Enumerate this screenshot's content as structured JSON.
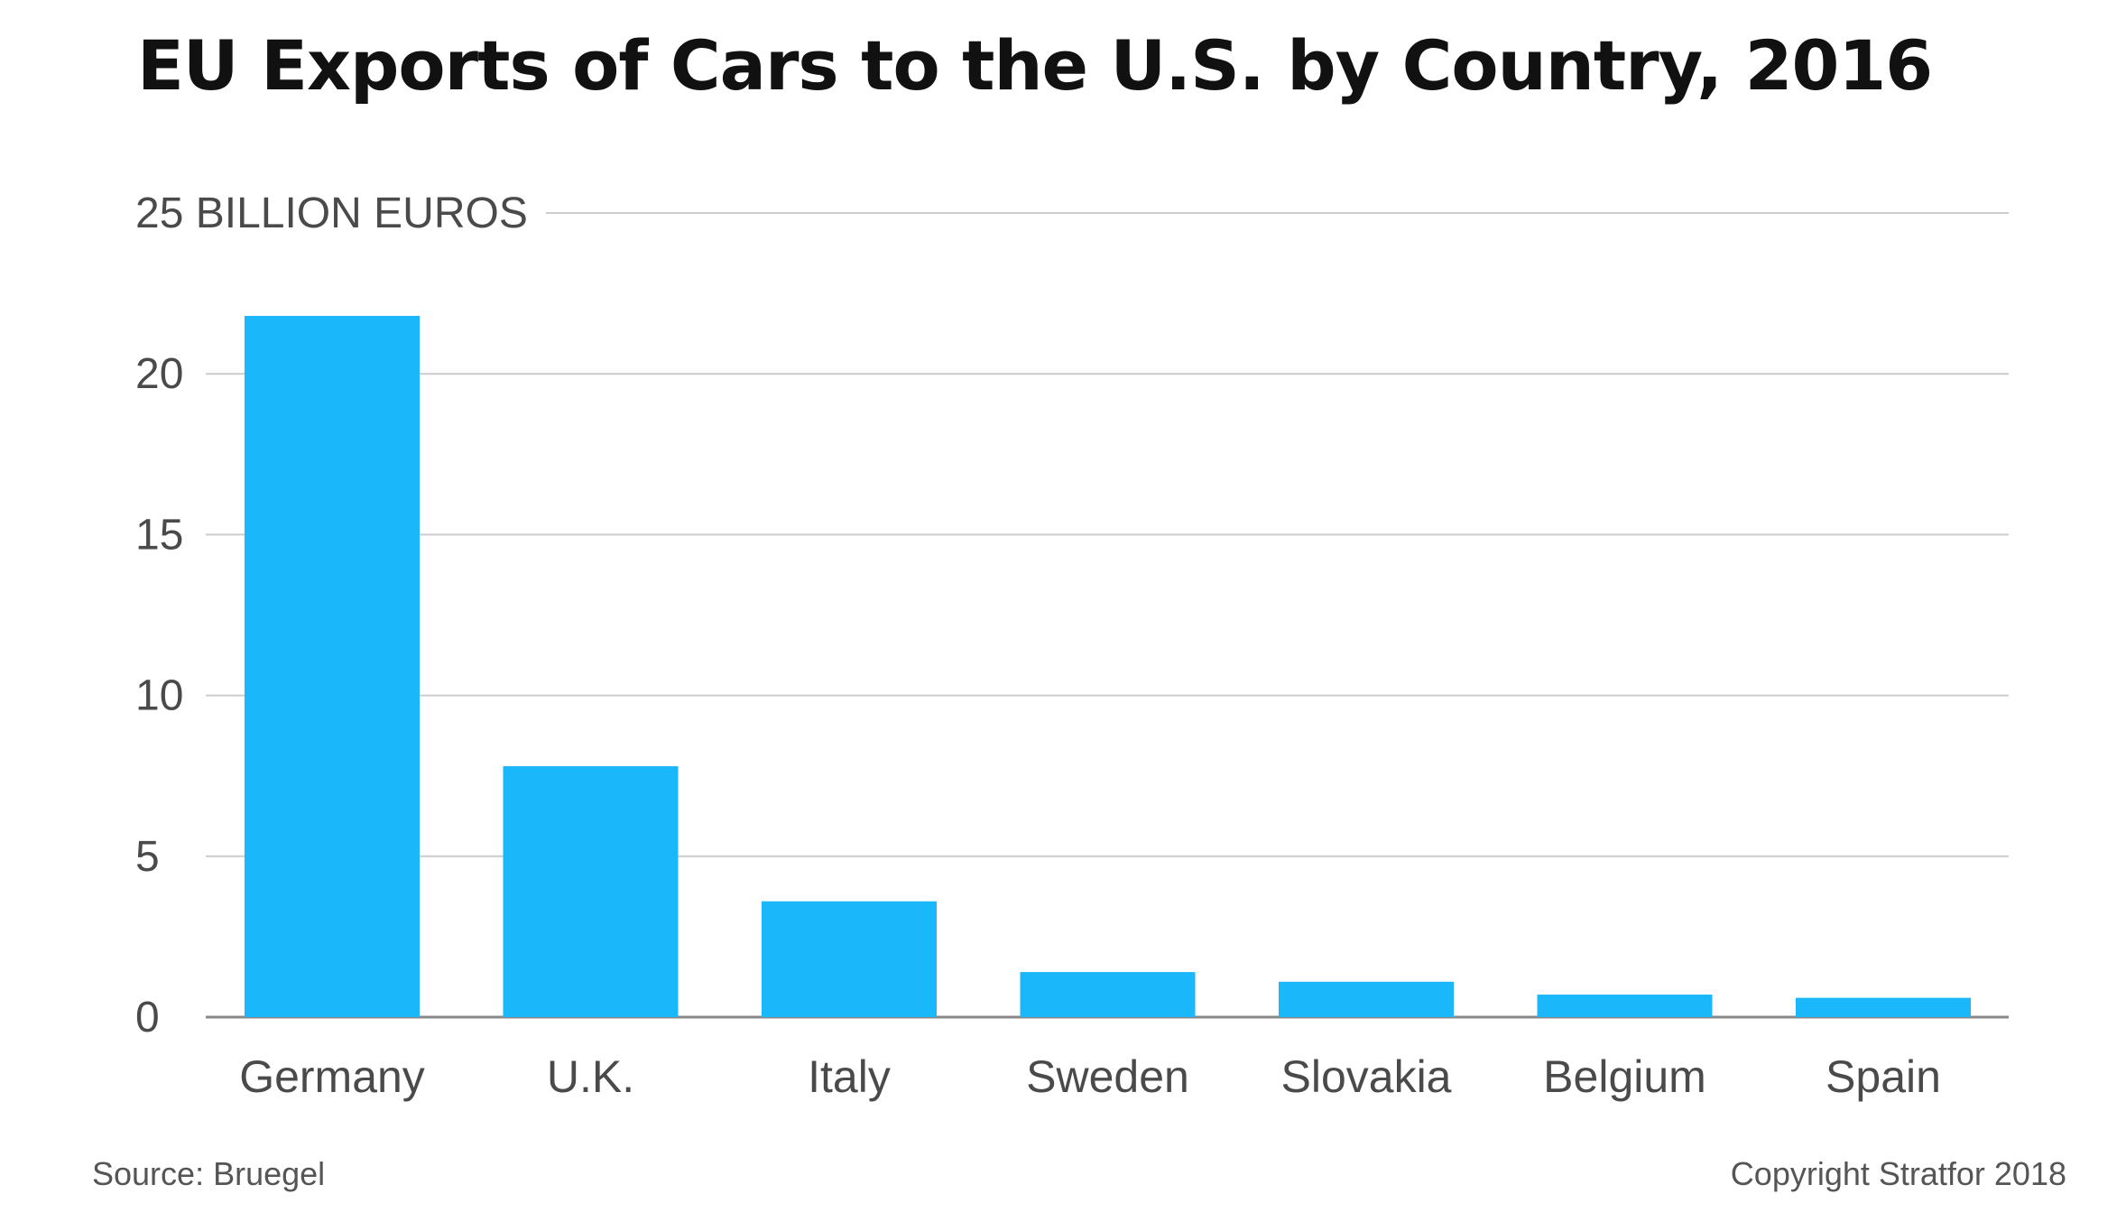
{
  "title": "EU Exports of Cars to the U.S. by Country, 2016",
  "source": "Source: Bruegel",
  "copyright": "Copyright Stratfor 2018",
  "colors": {
    "bar": "#1ab7fa",
    "grid": "#cccccc",
    "text": "#4a4a4a"
  },
  "chart_data": {
    "type": "bar",
    "categories": [
      "Germany",
      "U.K.",
      "Italy",
      "Sweden",
      "Slovakia",
      "Belgium",
      "Spain"
    ],
    "values": [
      21.8,
      7.8,
      3.6,
      1.4,
      1.1,
      0.7,
      0.6
    ],
    "ylim": [
      0,
      25
    ],
    "yticks": [
      0,
      5,
      10,
      15,
      20,
      25
    ],
    "ytick_labels": [
      "0",
      "5",
      "10",
      "15",
      "20",
      "25 BILLION EUROS"
    ],
    "grid": true
  }
}
